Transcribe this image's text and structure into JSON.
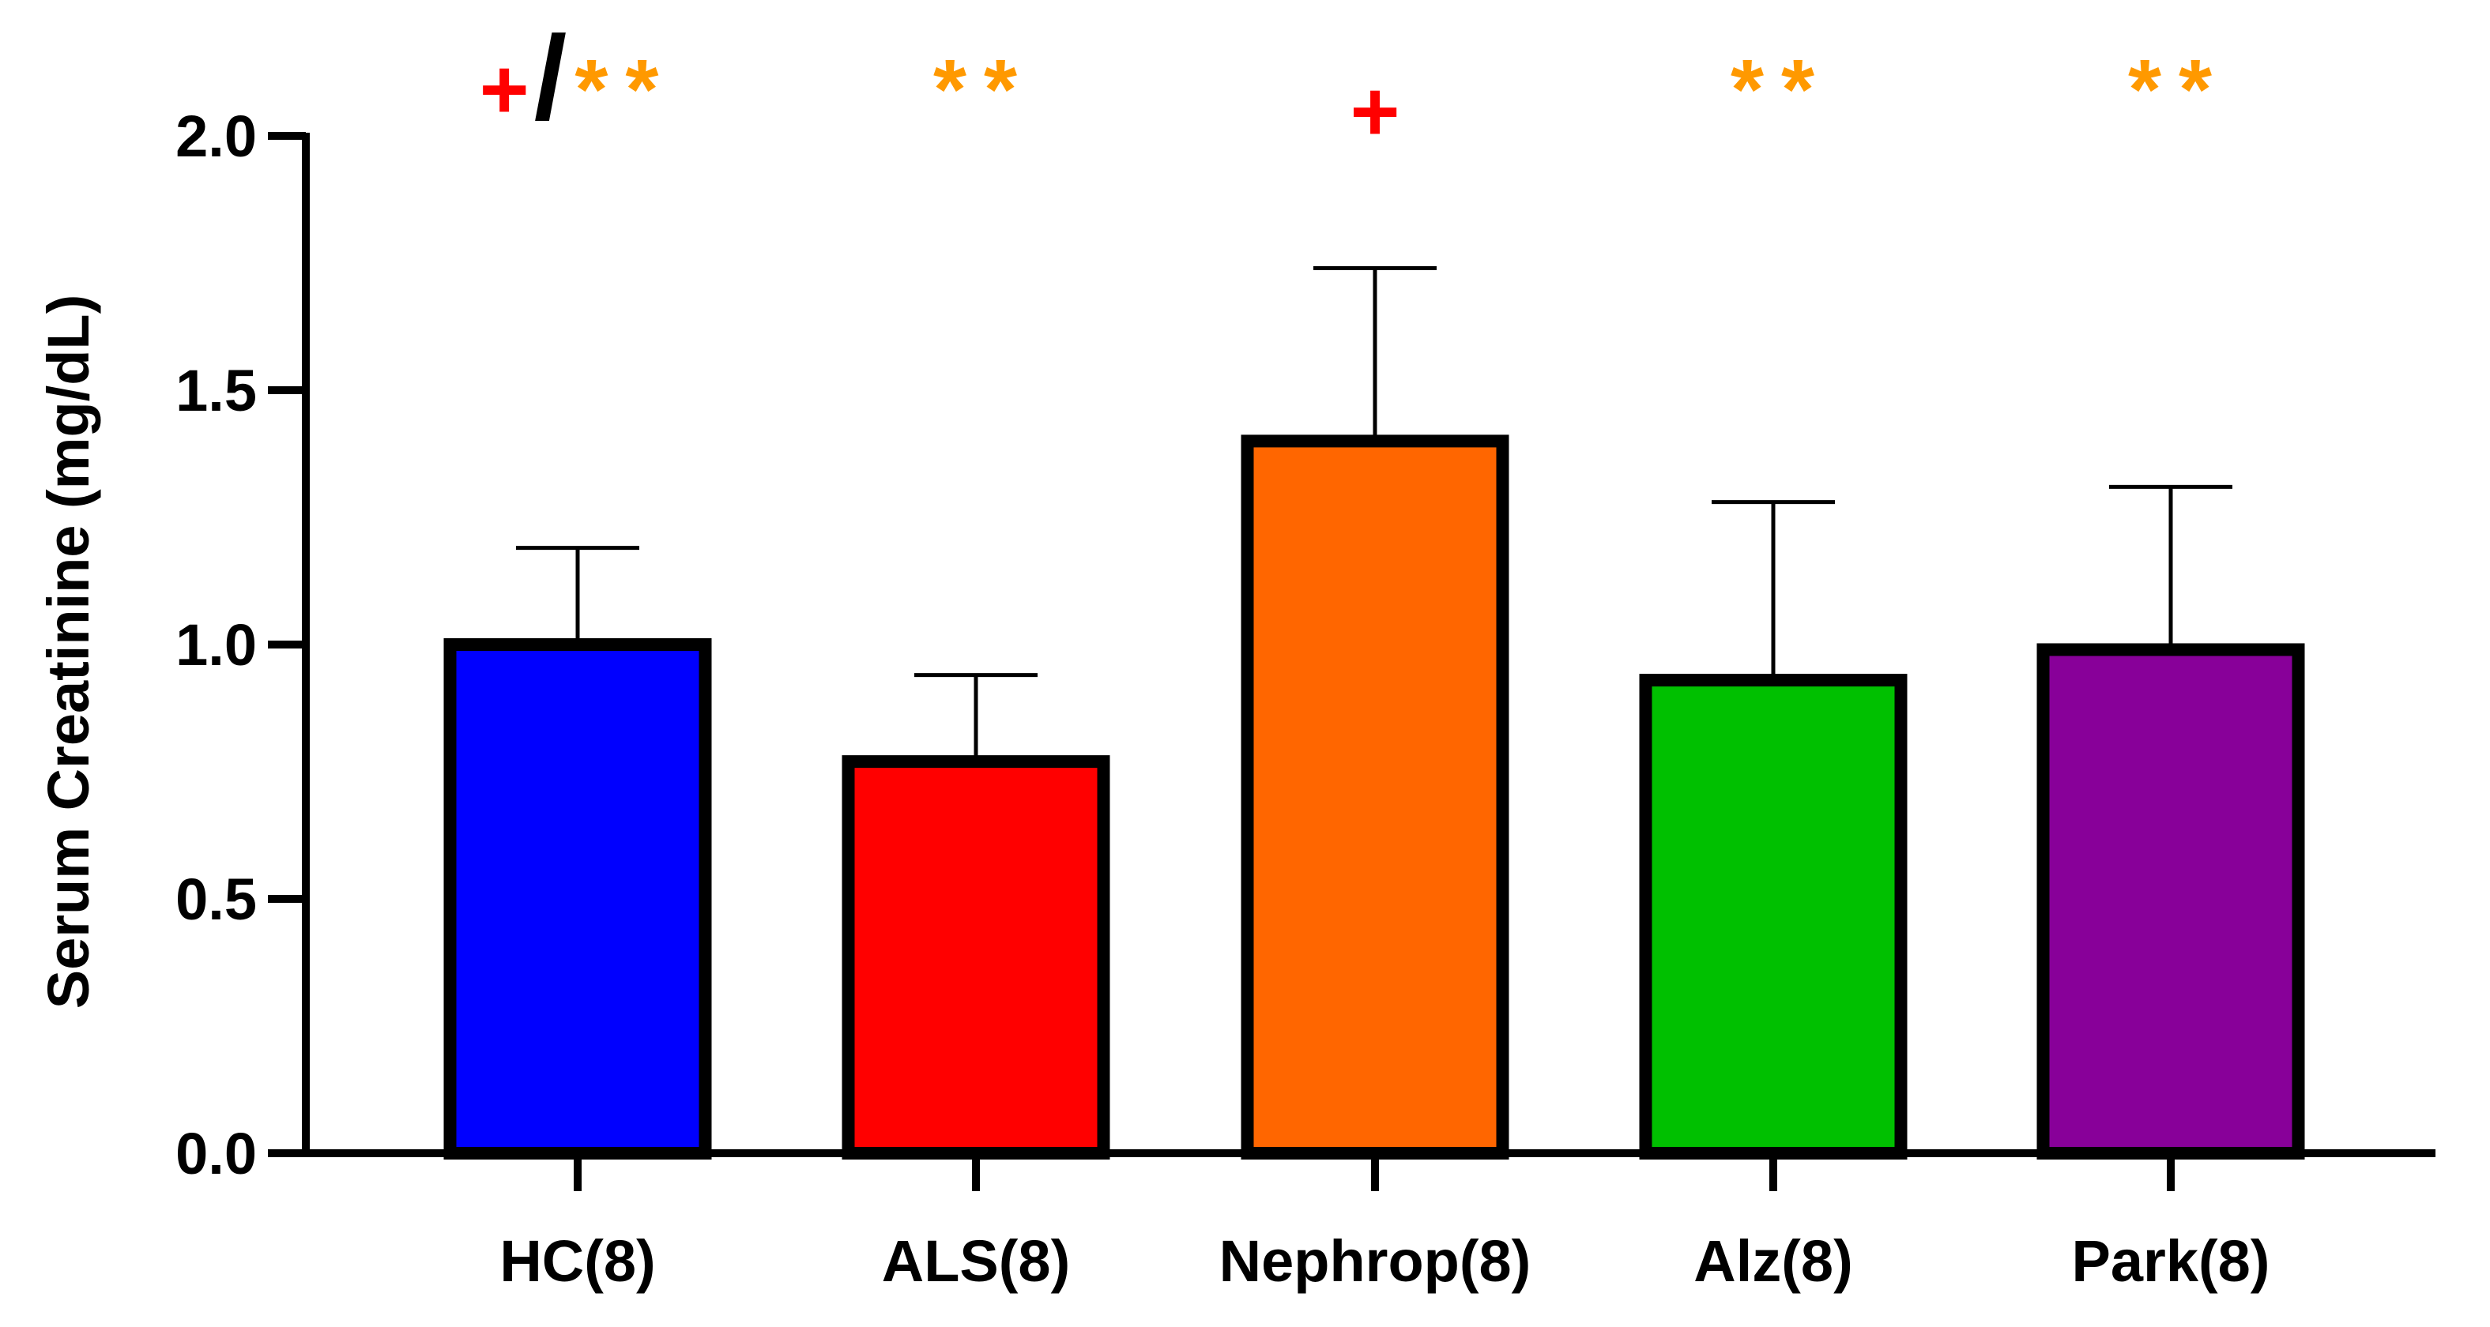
{
  "chart_data": {
    "type": "bar",
    "title": "",
    "xlabel": "",
    "ylabel": "Serum Creatinine (mg/dL)",
    "ylim": [
      0,
      2.0
    ],
    "yticks": [
      "0.0",
      "0.5",
      "1.0",
      "1.5",
      "2.0"
    ],
    "ytick_values": [
      0,
      0.5,
      1.0,
      1.5,
      2.0
    ],
    "grid": false,
    "categories": [
      "HC(8)",
      "ALS(8)",
      "Nephrop(8)",
      "Alz(8)",
      "Park(8)"
    ],
    "values": [
      1.0,
      0.77,
      1.4,
      0.93,
      0.99
    ],
    "errors": [
      0.19,
      0.17,
      0.34,
      0.35,
      0.32
    ],
    "colors": [
      "#0000ff",
      "#ff0000",
      "#ff6600",
      "#00c000",
      "#880099"
    ],
    "annotations": [
      {
        "plus": "+",
        "slash": "/",
        "stars": "**"
      },
      {
        "plus": "",
        "slash": "",
        "stars": "**"
      },
      {
        "plus": "+",
        "slash": "",
        "stars": ""
      },
      {
        "plus": "",
        "slash": "",
        "stars": "**"
      },
      {
        "plus": "",
        "slash": "",
        "stars": "**"
      }
    ],
    "annotation_colors": {
      "plus": "#ff0000",
      "slash": "#000000",
      "stars": "#ff9900"
    }
  }
}
